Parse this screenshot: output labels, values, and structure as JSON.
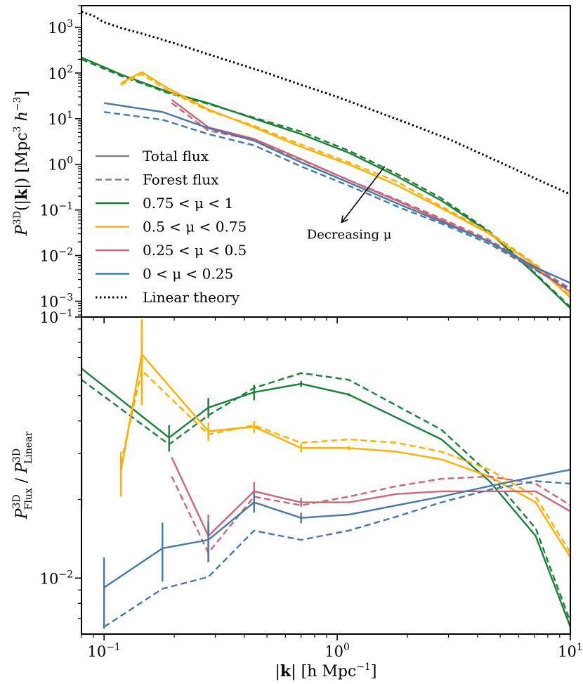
{
  "figure": {
    "xlabel": "|k| [h Mpc⁻¹]",
    "xlabel_parts": {
      "pre": "|",
      "bold": "k",
      "post": "| [h Mpc",
      "sup": "−1",
      "close": "]"
    },
    "colors": {
      "mu_075_1": "#1a7f37",
      "mu_05_075": "#ffae00",
      "mu_025_05": "#cc6677",
      "mu_0_025": "#4477aa",
      "linear": "#000000"
    }
  },
  "chart_data": [
    {
      "type": "line",
      "panel": "top",
      "xscale": "log",
      "yscale": "log",
      "xlim": [
        0.08,
        10
      ],
      "ylim": [
        0.00045,
        3000
      ],
      "ylabel": "P³ᴰ(|k|) [Mpc³ h⁻³]",
      "ylabel_parts": {
        "P": "P",
        "sup": "3D",
        "mid": "(|",
        "bold": "k",
        "post": "|) [Mpc",
        "sup2": "3",
        "h": " h",
        "sup3": "−3",
        "close": "]"
      },
      "yticks": [
        {
          "value": 1000,
          "base": "10",
          "exp": "3"
        },
        {
          "value": 100,
          "base": "10",
          "exp": "2"
        },
        {
          "value": 10,
          "base": "10",
          "exp": "1"
        },
        {
          "value": 1,
          "base": "10",
          "exp": "0"
        },
        {
          "value": 0.1,
          "base": "10",
          "exp": "−1"
        },
        {
          "value": 0.01,
          "base": "10",
          "exp": "−2"
        },
        {
          "value": 0.001,
          "base": "10",
          "exp": "−3"
        }
      ],
      "legend": {
        "location": "lower-left",
        "entries": [
          {
            "label": "Total flux",
            "style": "solid",
            "color": "#808080"
          },
          {
            "label": "Forest flux",
            "style": "dashed",
            "color": "#808080"
          },
          {
            "label": "0.75 < μ < 1",
            "style": "solid",
            "color": "#1a7f37"
          },
          {
            "label": "0.5 < μ < 0.75",
            "style": "solid",
            "color": "#ffae00"
          },
          {
            "label": "0.25 < μ < 0.5",
            "style": "solid",
            "color": "#cc6677"
          },
          {
            "label": "0 < μ < 0.25",
            "style": "solid",
            "color": "#4477aa"
          },
          {
            "label": "Linear theory",
            "style": "dotted",
            "color": "#000000"
          }
        ]
      },
      "annotation": {
        "text": "Decreasing μ",
        "arrow_from": [
          1.6,
          0.9
        ],
        "arrow_to": [
          1.05,
          0.055
        ]
      },
      "series": [
        {
          "name": "Linear theory",
          "color": "#000000",
          "style": "dotted",
          "x": [
            0.08,
            0.09,
            0.1,
            0.12,
            0.15,
            0.2,
            0.3,
            0.5,
            0.7,
            1,
            2,
            3,
            5,
            7,
            10
          ],
          "y": [
            2200,
            1800,
            1300,
            950,
            700,
            450,
            230,
            100,
            55,
            30,
            8,
            3.6,
            1.1,
            0.5,
            0.22
          ]
        },
        {
          "name": "0.75 < μ < 1 total",
          "color": "#1a7f37",
          "style": "solid",
          "x": [
            0.08,
            0.12,
            0.19,
            0.28,
            0.44,
            0.7,
            1.12,
            1.8,
            2.8,
            4.5,
            7.1,
            10
          ],
          "y": [
            220,
            90,
            38,
            22,
            10,
            4.6,
            1.8,
            0.55,
            0.16,
            0.032,
            0.0038,
            0.0007
          ]
        },
        {
          "name": "0.75 < μ < 1 forest",
          "color": "#1a7f37",
          "style": "dashed",
          "x": [
            0.08,
            0.12,
            0.19,
            0.28,
            0.44,
            0.7,
            1.12,
            1.8,
            2.8,
            4.5,
            7.1,
            10
          ],
          "y": [
            200,
            84,
            36,
            21,
            10.5,
            5.2,
            2.0,
            0.62,
            0.18,
            0.034,
            0.004,
            0.00075
          ]
        },
        {
          "name": "0.5 < μ < 0.75 total",
          "color": "#ffae00",
          "style": "solid",
          "x": [
            0.118,
            0.145,
            0.19,
            0.28,
            0.44,
            0.7,
            1.12,
            1.8,
            2.8,
            4.5,
            7.1,
            10
          ],
          "y": [
            60,
            105,
            45,
            16,
            6.5,
            2.4,
            1.0,
            0.35,
            0.11,
            0.03,
            0.006,
            0.0012
          ]
        },
        {
          "name": "0.5 < μ < 0.75 forest",
          "color": "#ffae00",
          "style": "dashed",
          "x": [
            0.118,
            0.145,
            0.19,
            0.28,
            0.44,
            0.7,
            1.12,
            1.8,
            2.8,
            4.5,
            7.1,
            10
          ],
          "y": [
            55,
            95,
            40,
            15,
            7.0,
            2.7,
            1.1,
            0.42,
            0.12,
            0.032,
            0.0065,
            0.0013
          ]
        },
        {
          "name": "0.25 < μ < 0.5 total",
          "color": "#cc6677",
          "style": "solid",
          "x": [
            0.195,
            0.28,
            0.44,
            0.7,
            1.12,
            1.8,
            2.8,
            4.5,
            7.1,
            10
          ],
          "y": [
            26,
            6.5,
            3.6,
            1.3,
            0.45,
            0.16,
            0.06,
            0.02,
            0.005,
            0.0016
          ]
        },
        {
          "name": "0.25 < μ < 0.5 forest",
          "color": "#cc6677",
          "style": "dashed",
          "x": [
            0.195,
            0.28,
            0.44,
            0.7,
            1.12,
            1.8,
            2.8,
            4.5,
            7.1,
            10
          ],
          "y": [
            22,
            5.5,
            3.4,
            1.25,
            0.45,
            0.17,
            0.065,
            0.022,
            0.0055,
            0.0019
          ]
        },
        {
          "name": "0 < μ < 0.25 total",
          "color": "#4477aa",
          "style": "solid",
          "x": [
            0.1,
            0.178,
            0.28,
            0.44,
            0.7,
            1.12,
            1.8,
            2.8,
            4.5,
            7.1,
            10
          ],
          "y": [
            22,
            14,
            6.2,
            3.3,
            1.1,
            0.4,
            0.14,
            0.055,
            0.02,
            0.0055,
            0.0025
          ]
        },
        {
          "name": "0 < μ < 0.25 forest",
          "color": "#4477aa",
          "style": "dashed",
          "x": [
            0.1,
            0.178,
            0.28,
            0.44,
            0.7,
            1.12,
            1.8,
            2.8,
            4.5,
            7.1,
            10
          ],
          "y": [
            14,
            9.5,
            4.6,
            2.6,
            0.9,
            0.34,
            0.12,
            0.05,
            0.018,
            0.0048,
            0.0018
          ]
        }
      ]
    },
    {
      "type": "line",
      "panel": "bottom",
      "xscale": "log",
      "yscale": "log",
      "xlim": [
        0.08,
        10
      ],
      "ylim": [
        0.0061,
        0.1
      ],
      "ylabel": "P³ᴰ_Flux / P³ᴰ_Linear",
      "ylabel_parts": {
        "P": "P",
        "sup": "3D",
        "sub": "Flux",
        "slash": " / ",
        "P2": "P",
        "sup2": "3D",
        "sub2": "Linear"
      },
      "yticks": [
        {
          "value": 0.1,
          "base": "10",
          "exp": "−1"
        },
        {
          "value": 0.01,
          "base": "10",
          "exp": "−2"
        }
      ],
      "xticks": [
        {
          "value": 0.1,
          "base": "10",
          "exp": "−1"
        },
        {
          "value": 1,
          "base": "10",
          "exp": "0"
        },
        {
          "value": 10,
          "base": "10",
          "exp": "1"
        }
      ],
      "series": [
        {
          "name": "0.75 < μ < 1 total",
          "color": "#1a7f37",
          "style": "solid",
          "x": [
            0.08,
            0.19,
            0.28,
            0.44,
            0.7,
            1.12,
            2.8,
            4.5,
            7.1,
            10
          ],
          "y": [
            0.0635,
            0.0345,
            0.045,
            0.0515,
            0.0555,
            0.0505,
            0.034,
            0.0235,
            0.0145,
            0.0065
          ],
          "yerr": [
            0.045,
            0.004,
            0.004,
            0.0035,
            0.0015,
            0.0006,
            0,
            0,
            0,
            0
          ]
        },
        {
          "name": "0.75 < μ < 1 forest",
          "color": "#1a7f37",
          "style": "dashed",
          "x": [
            0.08,
            0.19,
            0.28,
            0.44,
            0.7,
            1.12,
            2.8,
            4.5,
            7.1,
            10
          ],
          "y": [
            0.0575,
            0.0325,
            0.042,
            0.0535,
            0.061,
            0.0575,
            0.037,
            0.025,
            0.0155,
            0.0068
          ]
        },
        {
          "name": "0.5 < μ < 0.75 total",
          "color": "#ffae00",
          "style": "solid",
          "x": [
            0.118,
            0.145,
            0.28,
            0.44,
            0.7,
            1.12,
            1.8,
            2.8,
            4.5,
            7.1,
            10
          ],
          "y": [
            0.0255,
            0.072,
            0.0365,
            0.038,
            0.0315,
            0.0315,
            0.0305,
            0.0285,
            0.0245,
            0.0195,
            0.012
          ],
          "yerr": [
            0.005,
            0.026,
            0.003,
            0.002,
            0.0012,
            0.0006,
            0,
            0,
            0,
            0,
            0
          ]
        },
        {
          "name": "0.5 < μ < 0.75 forest",
          "color": "#ffae00",
          "style": "dashed",
          "x": [
            0.118,
            0.145,
            0.28,
            0.44,
            0.7,
            1.12,
            1.8,
            2.8,
            4.5,
            7.1,
            10
          ],
          "y": [
            0.0275,
            0.0625,
            0.0355,
            0.0385,
            0.033,
            0.034,
            0.033,
            0.0305,
            0.026,
            0.0205,
            0.0125
          ]
        },
        {
          "name": "0.25 < μ < 0.5 total",
          "color": "#cc6677",
          "style": "solid",
          "x": [
            0.195,
            0.28,
            0.44,
            0.7,
            1.12,
            1.8,
            2.8,
            4.5,
            7.1,
            10
          ],
          "y": [
            0.029,
            0.0145,
            0.0215,
            0.0195,
            0.0195,
            0.021,
            0.0215,
            0.0215,
            0.0215,
            0.018
          ],
          "yerr": [
            0,
            0.003,
            0.0018,
            0.0008,
            0,
            0,
            0,
            0,
            0,
            0
          ]
        },
        {
          "name": "0.25 < μ < 0.5 forest",
          "color": "#cc6677",
          "style": "dashed",
          "x": [
            0.195,
            0.28,
            0.44,
            0.7,
            1.12,
            1.8,
            2.8,
            4.5,
            7.1,
            10
          ],
          "y": [
            0.0245,
            0.0125,
            0.0205,
            0.019,
            0.0205,
            0.0225,
            0.024,
            0.0245,
            0.023,
            0.019
          ]
        },
        {
          "name": "0 < μ < 0.25 total",
          "color": "#4477aa",
          "style": "solid",
          "x": [
            0.1,
            0.178,
            0.28,
            0.44,
            0.7,
            1.12,
            1.8,
            2.8,
            4.5,
            7.1,
            10
          ],
          "y": [
            0.0092,
            0.013,
            0.014,
            0.0195,
            0.017,
            0.0175,
            0.019,
            0.0205,
            0.0225,
            0.0245,
            0.026
          ],
          "yerr": [
            0.0028,
            0.0033,
            0.0025,
            0.0017,
            0.0008,
            0,
            0,
            0,
            0,
            0,
            0
          ]
        },
        {
          "name": "0 < μ < 0.25 forest",
          "color": "#4477aa",
          "style": "dashed",
          "x": [
            0.1,
            0.178,
            0.28,
            0.44,
            0.7,
            1.12,
            1.8,
            2.8,
            4.5,
            7.1,
            10
          ],
          "y": [
            0.0065,
            0.0091,
            0.0101,
            0.0152,
            0.014,
            0.0152,
            0.0172,
            0.0195,
            0.0218,
            0.0235,
            0.023
          ]
        }
      ]
    }
  ]
}
